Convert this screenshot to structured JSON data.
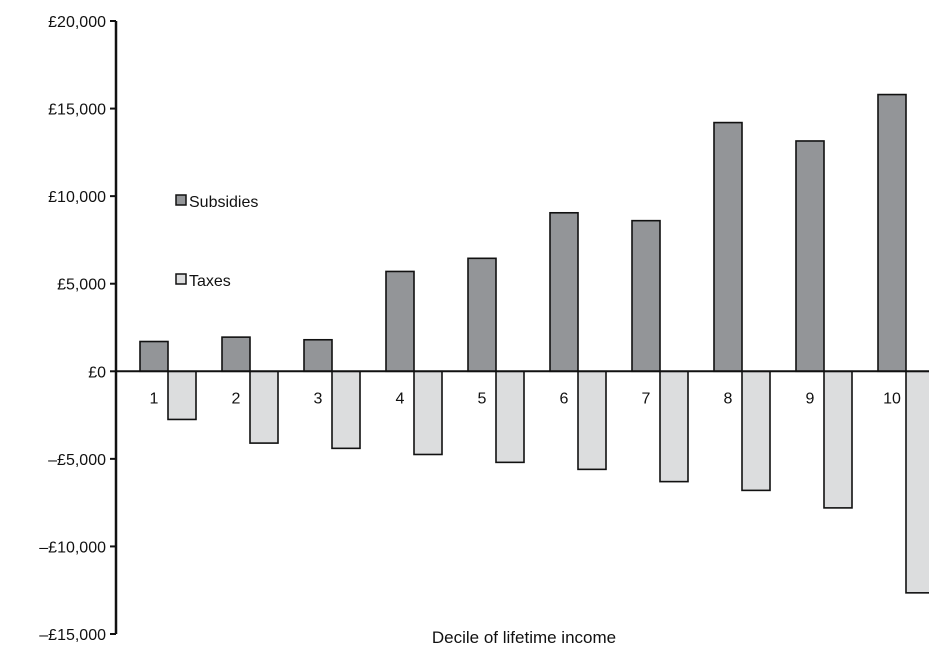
{
  "chart_data": {
    "type": "bar",
    "xlabel": "Decile of lifetime income",
    "ylabel": "",
    "categories": [
      "1",
      "2",
      "3",
      "4",
      "5",
      "6",
      "7",
      "8",
      "9",
      "10"
    ],
    "series": [
      {
        "name": "Subsidies",
        "color": "#939598",
        "values": [
          1700,
          1950,
          1800,
          5700,
          6450,
          9050,
          8600,
          14200,
          13150,
          15800
        ]
      },
      {
        "name": "Taxes",
        "color": "#dcddde",
        "values": [
          -2750,
          -4100,
          -4400,
          -4750,
          -5200,
          -5600,
          -6300,
          -6800,
          -7800,
          -12650
        ]
      }
    ],
    "ylim": [
      -15000,
      20000
    ],
    "yticks": [
      20000,
      15000,
      10000,
      5000,
      0,
      -5000,
      -10000,
      -15000
    ],
    "ytick_labels": [
      "£20,000",
      "£15,000",
      "£10,000",
      "£5,000",
      "£0",
      "–£5,000",
      "–£10,000",
      "–£15,000"
    ],
    "grid": false,
    "legend_position": "left"
  }
}
